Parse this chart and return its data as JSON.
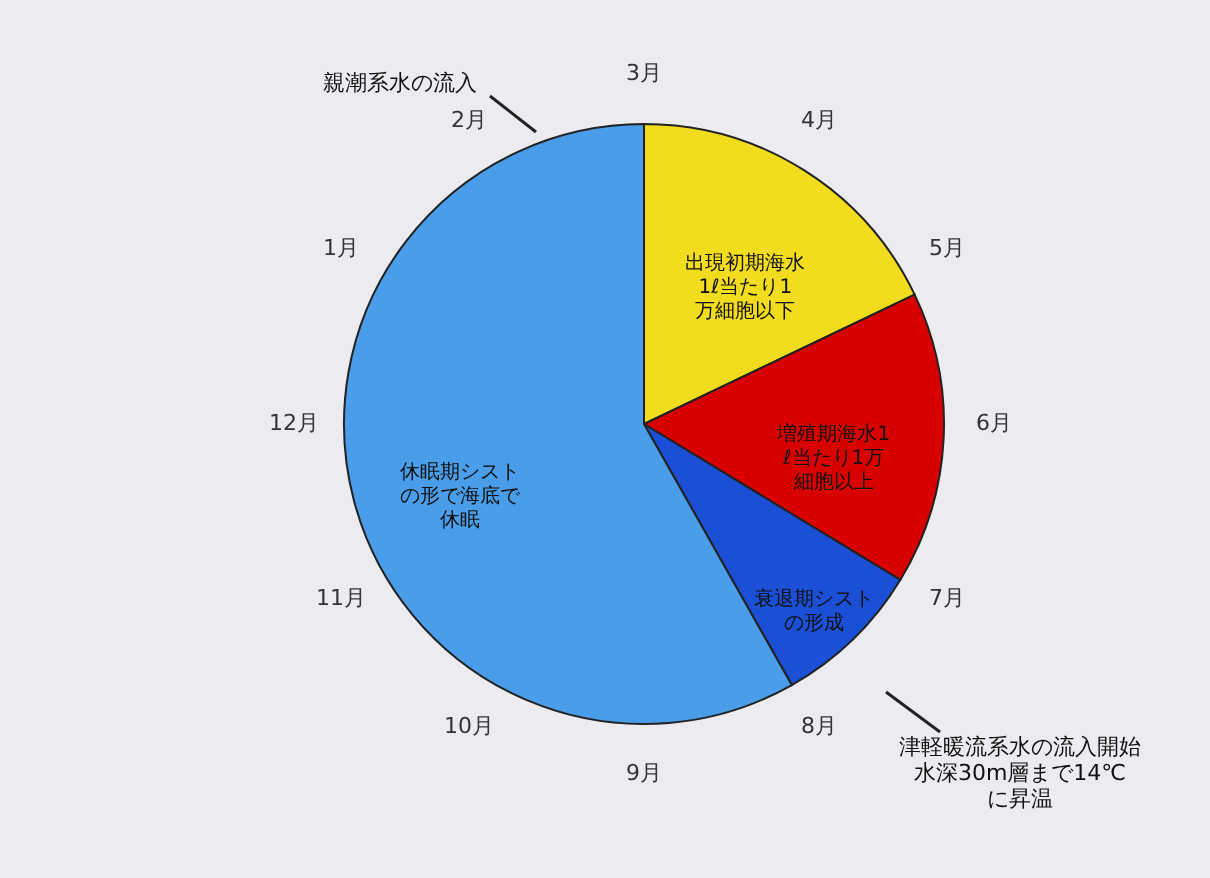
{
  "chart_data": {
    "type": "pie",
    "categories": [
      "出現初期海水1ℓ当たり1万細胞以下",
      "増殖期海水1ℓ当たり1万細胞以上",
      "衰退期シストの形成",
      "休眠期シストの形で海底で休眠"
    ],
    "values": [
      17.9,
      15.8,
      8.1,
      58.2
    ],
    "colors": [
      "#f2dc1e",
      "#d90000",
      "#1a4fd6",
      "#4a9de8"
    ],
    "annotations": [
      "3月",
      "4月",
      "5月",
      "6月",
      "7月",
      "8月",
      "9月",
      "10月",
      "11月",
      "12月",
      "1月",
      "2月",
      "親潮系水の流入",
      "津軽暖流系水の流入開始水深30m層まで14℃に昇温"
    ]
  }
}
